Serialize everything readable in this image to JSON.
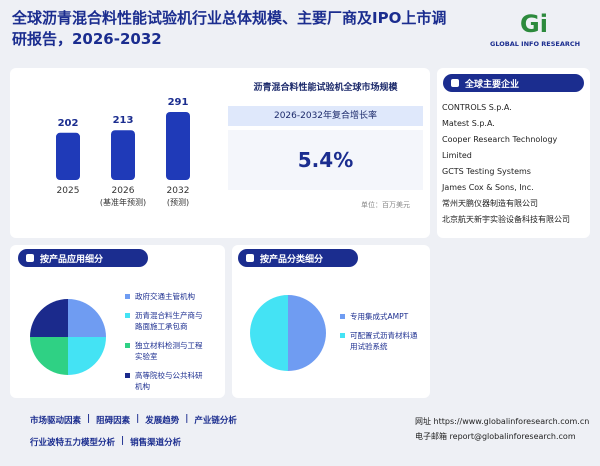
{
  "header": {
    "title": "全球沥青混合料性能试验机行业总体规模、主要厂商及IPO上市调研报告，2026-2032",
    "logo_text": "GLOBAL INFO RESEARCH"
  },
  "market_size": {
    "title": "沥青混合料性能试验机全球市场规模",
    "categories": [
      "2025",
      "2026",
      "2032"
    ],
    "sublabels": [
      null,
      "(基准年预测)",
      "(预测)"
    ],
    "values": [
      202,
      213,
      291
    ],
    "cagr_label": "2026-2032年复合增长率",
    "cagr": "5.4%",
    "unit": "单位：百万美元"
  },
  "companies": {
    "title": "全球主要企业",
    "items": [
      "CONTROLS S.p.A.",
      "Matest S.p.A.",
      "Cooper Research Technology Limited",
      "GCTS Testing Systems",
      "James Cox & Sons, Inc.",
      "常州天鹏仪器制造有限公司",
      "北京航天新宇实验设备科技有限公司"
    ]
  },
  "application": {
    "title": "按产品应用细分",
    "categories": [
      "政府交通主管机构",
      "沥青混合料生产商与路面施工承包商",
      "独立材料检测与工程实验室",
      "高等院校与公共科研机构"
    ],
    "values": [
      25,
      25,
      25,
      25
    ],
    "colors": [
      "#6f9cf2",
      "#44e3f4",
      "#2fd184",
      "#1b2a8c"
    ]
  },
  "product": {
    "title": "按产品分类细分",
    "categories": [
      "专用集成式AMPT",
      "可配置式沥青材料通用试验系统"
    ],
    "values": [
      50,
      50
    ],
    "colors": [
      "#6f9cf2",
      "#44e3f4"
    ]
  },
  "footer": {
    "links": [
      "市场驱动因素",
      "阻碍因素",
      "发展趋势",
      "产业链分析",
      "行业波特五力模型分析",
      "销售渠道分析"
    ],
    "website_label": "网址",
    "website": "https://www.globalinforesearch.com.cn",
    "email_label": "电子邮箱",
    "email": "report@globalinforesearch.com"
  }
}
